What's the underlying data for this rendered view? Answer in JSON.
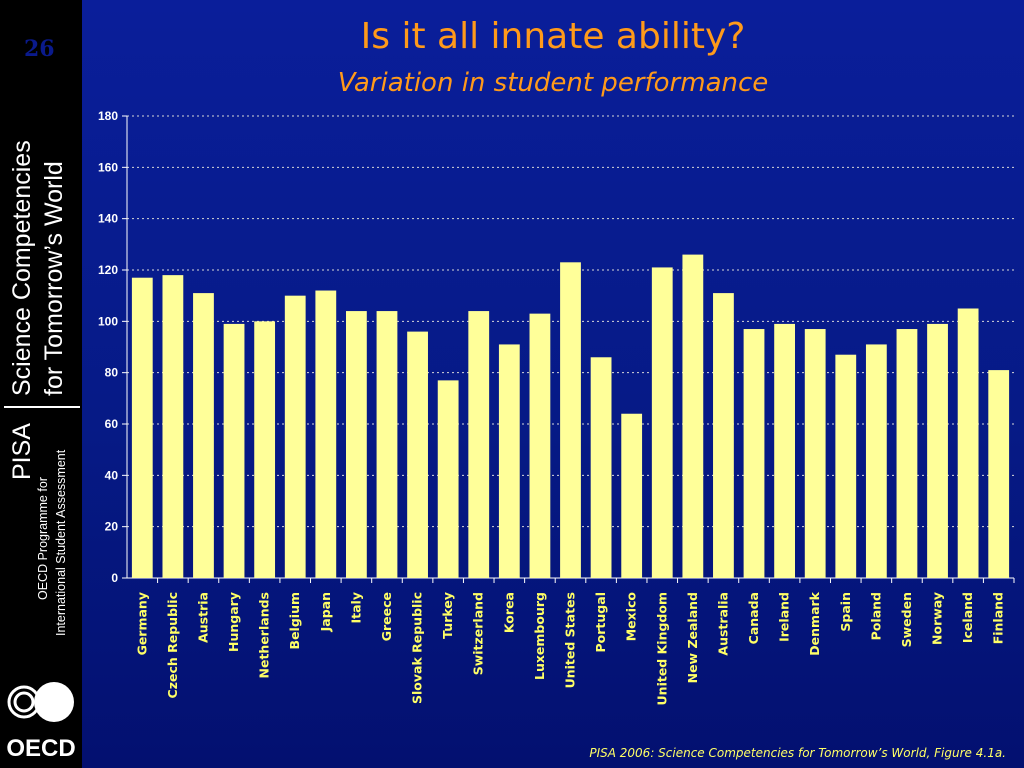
{
  "slide": {
    "number": "26",
    "title": "Is it all innate ability?",
    "subtitle": "Variation in student performance",
    "source": "PISA 2006: Science Competencies for Tomorrow’s World, Figure 4.1a."
  },
  "sidebar": {
    "series_line_1": "Science Competencies",
    "series_line_2": "for Tomorrow’s World",
    "pisa": "PISA",
    "programme_line_1": "OECD Programme for",
    "programme_line_2": "International Student Assessment",
    "logo_text": "OECD"
  },
  "colors": {
    "bar": "#ffff99",
    "title": "#ff9a1a",
    "text": "#ffffff",
    "background": "#061a86",
    "source": "#ffff66"
  },
  "chart_data": {
    "type": "bar",
    "title": "",
    "xlabel": "",
    "ylabel": "",
    "ylim": [
      0,
      180
    ],
    "yticks": [
      0,
      20,
      40,
      60,
      80,
      100,
      120,
      140,
      160,
      180
    ],
    "grid": true,
    "categories": [
      "Germany",
      "Czech Republic",
      "Austria",
      "Hungary",
      "Netherlands",
      "Belgium",
      "Japan",
      "Italy",
      "Greece",
      "Slovak Republic",
      "Turkey",
      "Switzerland",
      "Korea",
      "Luxembourg",
      "United States",
      "Portugal",
      "Mexico",
      "United Kingdom",
      "New Zealand",
      "Australia",
      "Canada",
      "Ireland",
      "Denmark",
      "Spain",
      "Poland",
      "Sweden",
      "Norway",
      "Iceland",
      "Finland"
    ],
    "values": [
      117,
      118,
      111,
      99,
      100,
      110,
      112,
      104,
      104,
      96,
      77,
      104,
      91,
      103,
      123,
      86,
      64,
      121,
      126,
      111,
      97,
      99,
      97,
      87,
      91,
      97,
      99,
      105,
      81
    ]
  }
}
